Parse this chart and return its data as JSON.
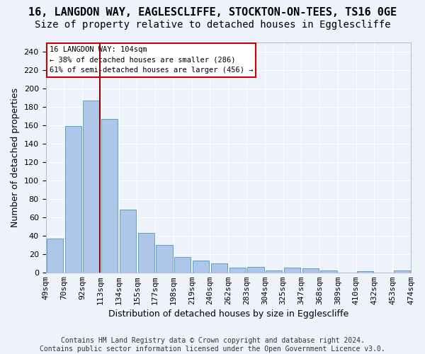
{
  "title": "16, LANGDON WAY, EAGLESCLIFFE, STOCKTON-ON-TEES, TS16 0GE",
  "subtitle": "Size of property relative to detached houses in Egglescliffe",
  "xlabel": "Distribution of detached houses by size in Egglescliffe",
  "ylabel": "Number of detached properties",
  "categories": [
    "49sqm",
    "70sqm",
    "92sqm",
    "113sqm",
    "134sqm",
    "155sqm",
    "177sqm",
    "198sqm",
    "219sqm",
    "240sqm",
    "262sqm",
    "283sqm",
    "304sqm",
    "325sqm",
    "347sqm",
    "368sqm",
    "389sqm",
    "410sqm",
    "432sqm",
    "453sqm",
    "474sqm"
  ],
  "values": [
    37,
    159,
    187,
    167,
    68,
    43,
    30,
    17,
    13,
    10,
    5,
    6,
    2,
    5,
    4,
    2,
    0,
    1,
    0,
    2
  ],
  "bar_color": "#aec6e8",
  "bar_edge_color": "#5a9fd4",
  "vline_color": "#8b0000",
  "ylim": [
    0,
    250
  ],
  "yticks": [
    0,
    20,
    40,
    60,
    80,
    100,
    120,
    140,
    160,
    180,
    200,
    220,
    240
  ],
  "annotation_title": "16 LANGDON WAY: 104sqm",
  "annotation_line1": "← 38% of detached houses are smaller (286)",
  "annotation_line2": "61% of semi-detached houses are larger (456) →",
  "annotation_box_color": "#ffffff",
  "annotation_box_edge_color": "#cc0000",
  "footer_line1": "Contains HM Land Registry data © Crown copyright and database right 2024.",
  "footer_line2": "Contains public sector information licensed under the Open Government Licence v3.0.",
  "title_fontsize": 11,
  "subtitle_fontsize": 10,
  "axis_label_fontsize": 9,
  "tick_fontsize": 8,
  "footer_fontsize": 7,
  "background_color": "#eef2fb",
  "grid_color": "#ffffff"
}
